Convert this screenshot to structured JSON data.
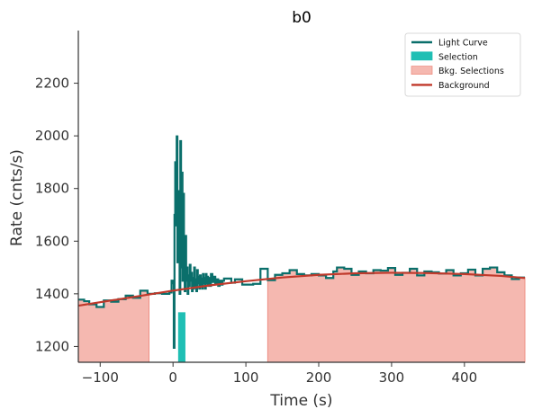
{
  "chart_data": {
    "type": "line",
    "title": "b0",
    "xlabel": "Time (s)",
    "ylabel": "Rate (cnts/s)",
    "xlim": [
      -130,
      483
    ],
    "ylim": [
      1140,
      2400
    ],
    "xticks": [
      -100,
      0,
      100,
      200,
      300,
      400
    ],
    "yticks": [
      1200,
      1400,
      1600,
      1800,
      2000,
      2200
    ],
    "grid": false,
    "legend_position": "top-right",
    "colors": {
      "light_curve": "#0a6f6b",
      "selection": "#1fbfb4",
      "bkg_selection_fill": "#f5b8b0",
      "bkg_selection_edge": "#ee8f84",
      "background": "#c0392b",
      "axis": "#333333"
    },
    "legend": [
      {
        "label": "Light Curve",
        "kind": "line",
        "color": "#0a6f6b"
      },
      {
        "label": "Selection",
        "kind": "patch",
        "color": "#1fbfb4"
      },
      {
        "label": "Bkg. Selections",
        "kind": "patch",
        "color": "#f5b8b0"
      },
      {
        "label": "Background",
        "kind": "line",
        "color": "#c0392b"
      }
    ],
    "selection_interval": [
      7,
      17
    ],
    "bkg_selections": [
      [
        -130,
        -33
      ],
      [
        130,
        483
      ]
    ],
    "background_poly": [
      [
        -130,
        1355
      ],
      [
        -50,
        1390
      ],
      [
        0,
        1412
      ],
      [
        50,
        1432
      ],
      [
        100,
        1448
      ],
      [
        150,
        1462
      ],
      [
        200,
        1472
      ],
      [
        250,
        1478
      ],
      [
        300,
        1480
      ],
      [
        350,
        1479
      ],
      [
        400,
        1475
      ],
      [
        450,
        1468
      ],
      [
        483,
        1460
      ]
    ],
    "light_curve_step": [
      [
        -130,
        1378
      ],
      [
        -122,
        1372
      ],
      [
        -115,
        1360
      ],
      [
        -105,
        1350
      ],
      [
        -95,
        1375
      ],
      [
        -85,
        1370
      ],
      [
        -75,
        1380
      ],
      [
        -65,
        1393
      ],
      [
        -55,
        1385
      ],
      [
        -45,
        1412
      ],
      [
        -35,
        1400
      ],
      [
        -25,
        1402
      ],
      [
        -15,
        1400
      ],
      [
        -5,
        1405
      ],
      [
        -2,
        1450
      ],
      [
        0,
        1440
      ],
      [
        1,
        1195
      ],
      [
        2,
        1700
      ],
      [
        3,
        1900
      ],
      [
        4,
        1660
      ],
      [
        5,
        1998
      ],
      [
        6,
        1520
      ],
      [
        7,
        1790
      ],
      [
        8,
        1660
      ],
      [
        9,
        1400
      ],
      [
        10,
        1980
      ],
      [
        11,
        1500
      ],
      [
        12,
        1860
      ],
      [
        13,
        1450
      ],
      [
        14,
        1780
      ],
      [
        15,
        1560
      ],
      [
        16,
        1410
      ],
      [
        17,
        1620
      ],
      [
        18,
        1450
      ],
      [
        19,
        1500
      ],
      [
        20,
        1400
      ],
      [
        21,
        1470
      ],
      [
        22,
        1430
      ],
      [
        23,
        1510
      ],
      [
        24,
        1450
      ],
      [
        25,
        1480
      ],
      [
        26,
        1410
      ],
      [
        27,
        1460
      ],
      [
        28,
        1420
      ],
      [
        29,
        1500
      ],
      [
        30,
        1430
      ],
      [
        31,
        1455
      ],
      [
        32,
        1410
      ],
      [
        33,
        1490
      ],
      [
        34,
        1440
      ],
      [
        35,
        1465
      ],
      [
        36,
        1420
      ],
      [
        37,
        1470
      ],
      [
        38,
        1430
      ],
      [
        39,
        1458
      ],
      [
        40,
        1420
      ],
      [
        41,
        1475
      ],
      [
        42,
        1440
      ],
      [
        43,
        1460
      ],
      [
        44,
        1420
      ],
      [
        45,
        1475
      ],
      [
        46,
        1440
      ],
      [
        47,
        1465
      ],
      [
        48,
        1430
      ],
      [
        49,
        1460
      ],
      [
        50,
        1430
      ],
      [
        52,
        1475
      ],
      [
        54,
        1445
      ],
      [
        56,
        1465
      ],
      [
        58,
        1440
      ],
      [
        60,
        1455
      ],
      [
        62,
        1430
      ],
      [
        64,
        1450
      ],
      [
        66,
        1435
      ],
      [
        68,
        1450
      ],
      [
        70,
        1458
      ],
      [
        80,
        1442
      ],
      [
        85,
        1455
      ],
      [
        95,
        1435
      ],
      [
        110,
        1438
      ],
      [
        120,
        1495
      ],
      [
        130,
        1452
      ],
      [
        140,
        1472
      ],
      [
        150,
        1478
      ],
      [
        160,
        1490
      ],
      [
        170,
        1475
      ],
      [
        180,
        1470
      ],
      [
        190,
        1475
      ],
      [
        200,
        1470
      ],
      [
        210,
        1460
      ],
      [
        220,
        1485
      ],
      [
        225,
        1500
      ],
      [
        235,
        1495
      ],
      [
        245,
        1472
      ],
      [
        255,
        1485
      ],
      [
        265,
        1478
      ],
      [
        275,
        1490
      ],
      [
        285,
        1488
      ],
      [
        295,
        1498
      ],
      [
        305,
        1472
      ],
      [
        315,
        1480
      ],
      [
        325,
        1495
      ],
      [
        335,
        1470
      ],
      [
        345,
        1485
      ],
      [
        355,
        1482
      ],
      [
        365,
        1477
      ],
      [
        375,
        1490
      ],
      [
        385,
        1470
      ],
      [
        395,
        1478
      ],
      [
        405,
        1492
      ],
      [
        415,
        1470
      ],
      [
        425,
        1495
      ],
      [
        435,
        1500
      ],
      [
        445,
        1482
      ],
      [
        455,
        1470
      ],
      [
        465,
        1456
      ],
      [
        475,
        1462
      ],
      [
        483,
        1462
      ]
    ]
  }
}
